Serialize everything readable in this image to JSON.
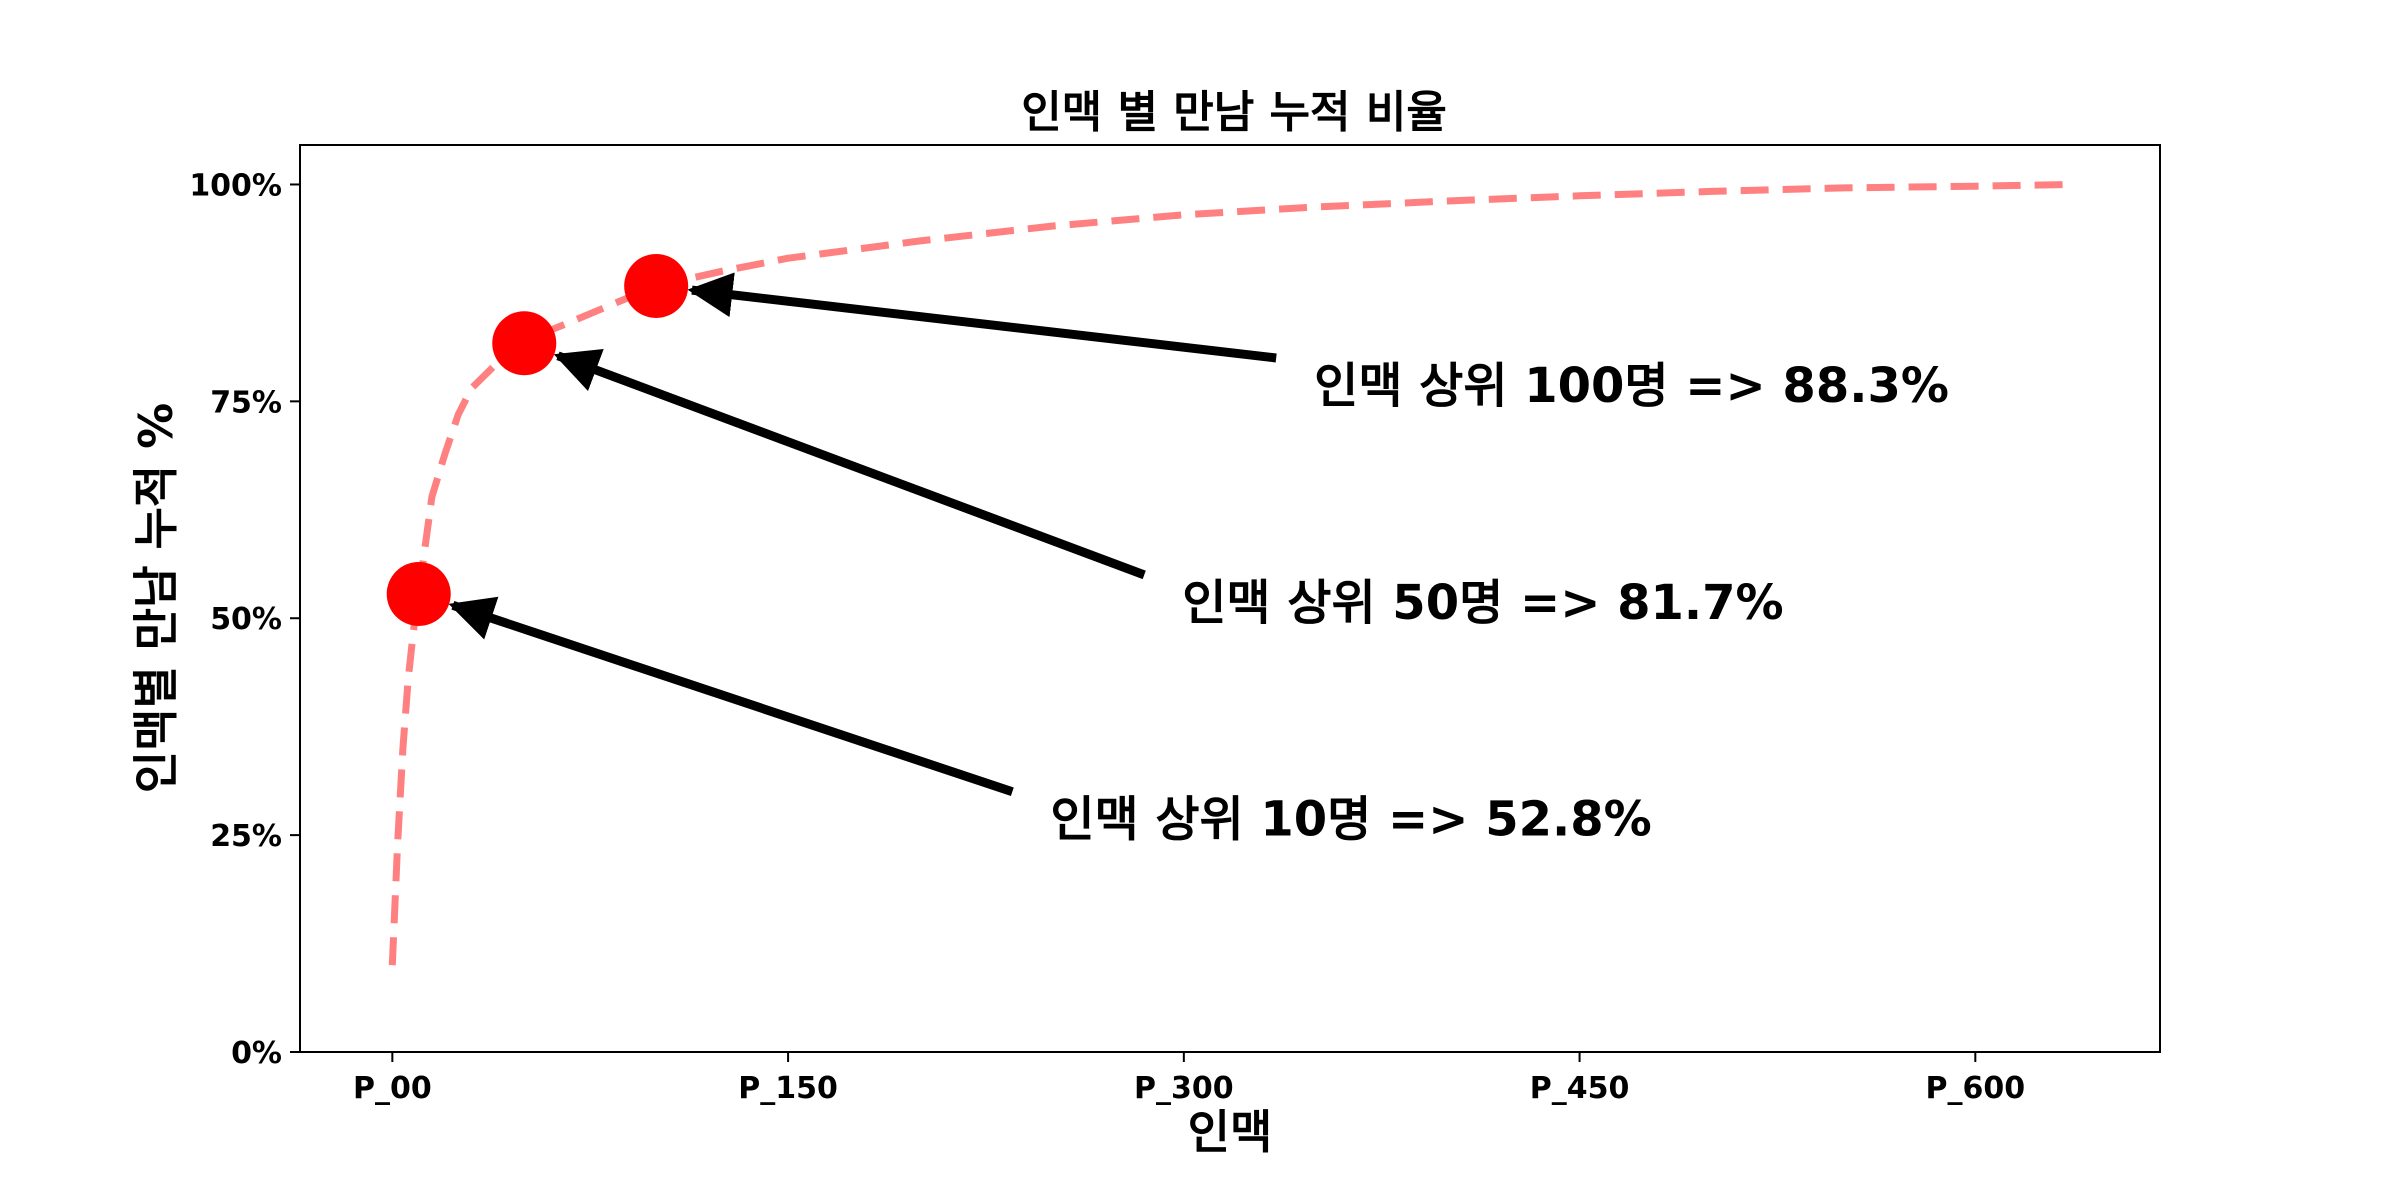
{
  "chart_data": {
    "type": "line",
    "title": "인맥 별 만남 누적 비율",
    "xlabel": "인맥",
    "ylabel": "인맥별 만남 누적 %",
    "xlim": [
      -35,
      670
    ],
    "ylim": [
      0,
      1.0455
    ],
    "x_ticks": [
      {
        "value": 0,
        "label": "P_00"
      },
      {
        "value": 150,
        "label": "P_150"
      },
      {
        "value": 300,
        "label": "P_300"
      },
      {
        "value": 450,
        "label": "P_450"
      },
      {
        "value": 600,
        "label": "P_600"
      }
    ],
    "y_ticks": [
      {
        "value": 0,
        "label": "0%"
      },
      {
        "value": 0.25,
        "label": "25%"
      },
      {
        "value": 0.5,
        "label": "50%"
      },
      {
        "value": 0.75,
        "label": "75%"
      },
      {
        "value": 1.0,
        "label": "100%"
      }
    ],
    "series": [
      {
        "style": "dashed",
        "color": "#ff8080",
        "x": [
          0,
          2,
          4,
          6,
          8,
          10,
          15,
          20,
          25,
          30,
          40,
          50,
          60,
          75,
          100,
          125,
          150,
          200,
          250,
          300,
          350,
          400,
          450,
          500,
          550,
          600,
          635
        ],
        "y": [
          0.1,
          0.24,
          0.35,
          0.43,
          0.485,
          0.528,
          0.64,
          0.69,
          0.735,
          0.765,
          0.795,
          0.817,
          0.832,
          0.851,
          0.883,
          0.9,
          0.915,
          0.935,
          0.952,
          0.965,
          0.974,
          0.981,
          0.987,
          0.992,
          0.996,
          0.998,
          1.0
        ]
      }
    ],
    "highlight_points": [
      {
        "x": 10,
        "y": 0.528,
        "color": "#ff0000"
      },
      {
        "x": 50,
        "y": 0.817,
        "color": "#ff0000"
      },
      {
        "x": 100,
        "y": 0.883,
        "color": "#ff0000"
      }
    ],
    "annotations": [
      {
        "text": "인맥 상위 10명 => 52.8%",
        "point_x": 10,
        "point_y": 0.528,
        "text_x": 235,
        "text_y": 0.3
      },
      {
        "text": "인맥 상위 50명 => 81.7%",
        "point_x": 50,
        "point_y": 0.817,
        "text_x": 285,
        "text_y": 0.55
      },
      {
        "text": "인맥 상위 100명 => 88.3%",
        "point_x": 100,
        "point_y": 0.883,
        "text_x": 335,
        "text_y": 0.8
      }
    ],
    "grid": false,
    "legend": "none"
  }
}
